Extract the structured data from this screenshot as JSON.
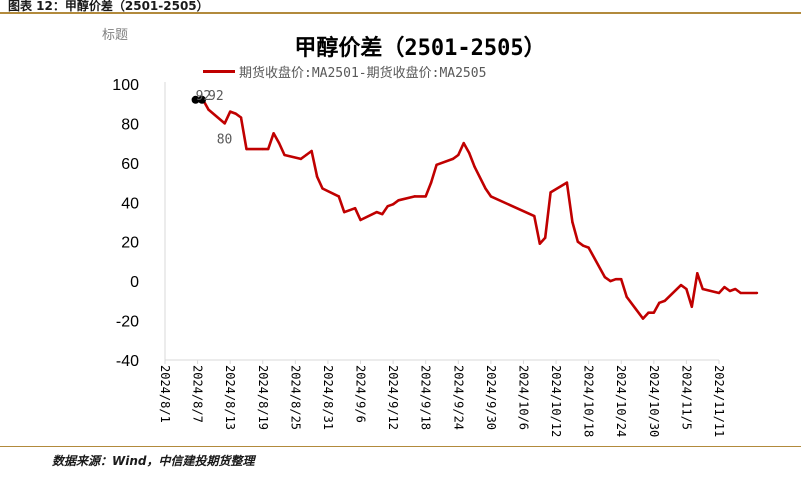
{
  "figure": {
    "caption": "图表 12：甲醇价差（2501-2505）",
    "placeholder": "标题",
    "source": "数据来源：Wind，中信建投期货整理"
  },
  "chart_data": {
    "type": "line",
    "title": "甲醇价差（2501-2505）",
    "xlabel": "",
    "ylabel": "",
    "ylim": [
      -40,
      100
    ],
    "yticks": [
      -40,
      -20,
      0,
      20,
      40,
      60,
      80,
      100
    ],
    "xticks": [
      "2024/8/1",
      "2024/8/7",
      "2024/8/13",
      "2024/8/19",
      "2024/8/25",
      "2024/8/31",
      "2024/9/6",
      "2024/9/12",
      "2024/9/18",
      "2024/9/24",
      "2024/9/30",
      "2024/10/6",
      "2024/10/12",
      "2024/10/18",
      "2024/10/24",
      "2024/10/30",
      "2024/11/5",
      "2024/11/11"
    ],
    "legend_position": "top",
    "grid": false,
    "series": [
      {
        "name": "期货收盘价:MA2501-期货收盘价:MA2505",
        "color": "#c00000",
        "points": [
          [
            "2024-08-07",
            92
          ],
          [
            "2024-08-08",
            92
          ],
          [
            "2024-08-09",
            87
          ],
          [
            "2024-08-12",
            80
          ],
          [
            "2024-08-13",
            86
          ],
          [
            "2024-08-14",
            85
          ],
          [
            "2024-08-15",
            83
          ],
          [
            "2024-08-16",
            67
          ],
          [
            "2024-08-19",
            67
          ],
          [
            "2024-08-20",
            67
          ],
          [
            "2024-08-21",
            75
          ],
          [
            "2024-08-22",
            70
          ],
          [
            "2024-08-23",
            64
          ],
          [
            "2024-08-26",
            62
          ],
          [
            "2024-08-27",
            64
          ],
          [
            "2024-08-28",
            66
          ],
          [
            "2024-08-29",
            53
          ],
          [
            "2024-08-30",
            47
          ],
          [
            "2024-09-02",
            43
          ],
          [
            "2024-09-03",
            35
          ],
          [
            "2024-09-04",
            36
          ],
          [
            "2024-09-05",
            37
          ],
          [
            "2024-09-06",
            31
          ],
          [
            "2024-09-09",
            35
          ],
          [
            "2024-09-10",
            34
          ],
          [
            "2024-09-11",
            38
          ],
          [
            "2024-09-12",
            39
          ],
          [
            "2024-09-13",
            41
          ],
          [
            "2024-09-16",
            43
          ],
          [
            "2024-09-18",
            43
          ],
          [
            "2024-09-19",
            50
          ],
          [
            "2024-09-20",
            59
          ],
          [
            "2024-09-23",
            62
          ],
          [
            "2024-09-24",
            64
          ],
          [
            "2024-09-25",
            70
          ],
          [
            "2024-09-26",
            65
          ],
          [
            "2024-09-27",
            58
          ],
          [
            "2024-09-29",
            47
          ],
          [
            "2024-09-30",
            43
          ],
          [
            "2024-10-08",
            33
          ],
          [
            "2024-10-09",
            19
          ],
          [
            "2024-10-10",
            22
          ],
          [
            "2024-10-11",
            45
          ],
          [
            "2024-10-14",
            50
          ],
          [
            "2024-10-15",
            30
          ],
          [
            "2024-10-16",
            20
          ],
          [
            "2024-10-17",
            18
          ],
          [
            "2024-10-18",
            17
          ],
          [
            "2024-10-21",
            2
          ],
          [
            "2024-10-22",
            0
          ],
          [
            "2024-10-23",
            1
          ],
          [
            "2024-10-24",
            1
          ],
          [
            "2024-10-25",
            -8
          ],
          [
            "2024-10-28",
            -19
          ],
          [
            "2024-10-29",
            -16
          ],
          [
            "2024-10-30",
            -16
          ],
          [
            "2024-10-31",
            -11
          ],
          [
            "2024-11-01",
            -10
          ],
          [
            "2024-11-04",
            -2
          ],
          [
            "2024-11-05",
            -4
          ],
          [
            "2024-11-06",
            -13
          ],
          [
            "2024-11-07",
            4
          ],
          [
            "2024-11-08",
            -4
          ],
          [
            "2024-11-11",
            -6
          ],
          [
            "2024-11-12",
            -3
          ],
          [
            "2024-11-13",
            -5
          ],
          [
            "2024-11-14",
            -4
          ],
          [
            "2024-11-15",
            -6
          ],
          [
            "2024-11-18",
            -6
          ]
        ]
      }
    ],
    "annotations": [
      {
        "text": "92",
        "x": "2024-08-07",
        "y": 92
      },
      {
        "text": "92",
        "x": "2024-08-08",
        "y": 92
      },
      {
        "text": "80",
        "x": "2024-08-12",
        "y": 80
      }
    ]
  }
}
